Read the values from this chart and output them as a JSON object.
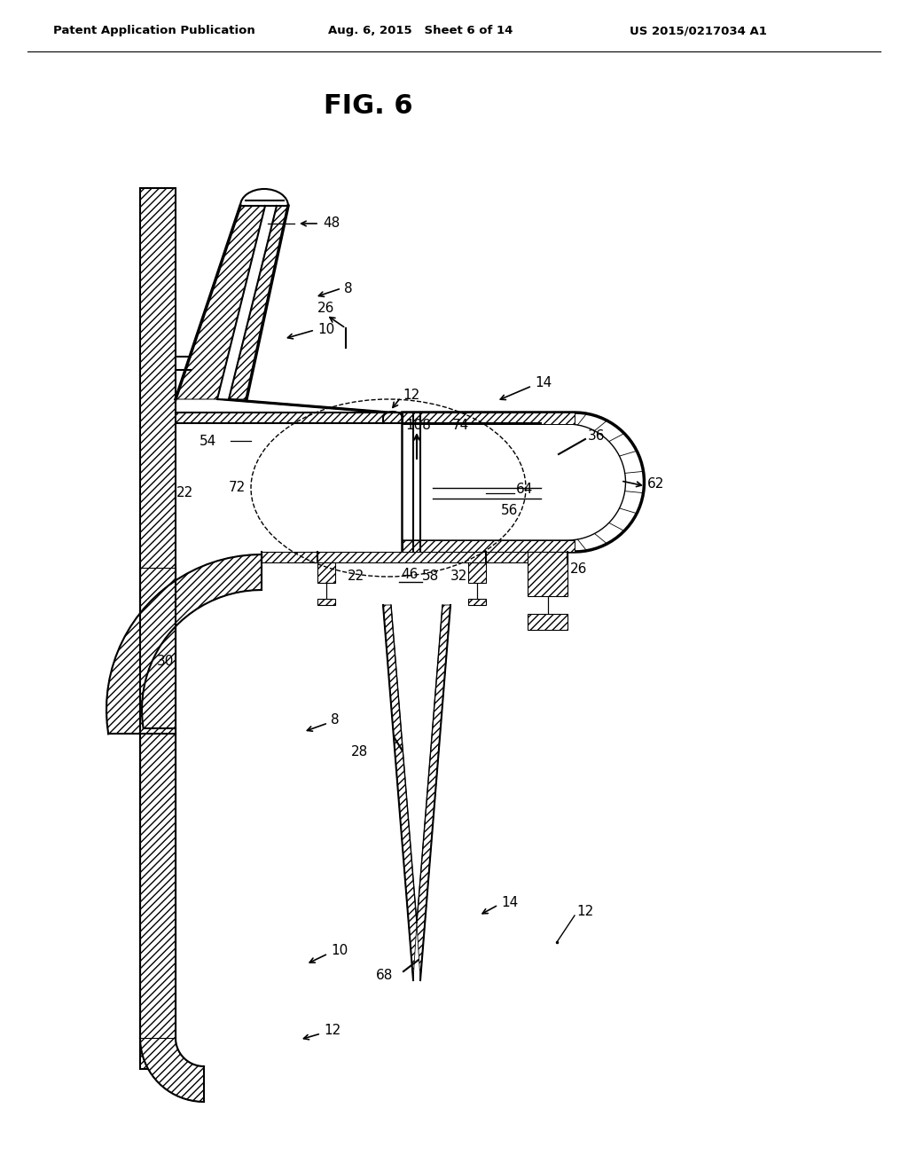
{
  "title": "FIG. 6",
  "header_left": "Patent Application Publication",
  "header_center": "Aug. 6, 2015   Sheet 6 of 14",
  "header_right": "US 2015/0217034 A1",
  "bg_color": "#ffffff",
  "line_color": "#000000",
  "lw_main": 1.5,
  "lw_thick": 2.5,
  "lw_thin": 1.0,
  "label_fontsize": 11,
  "title_fontsize": 22,
  "header_fontsize": 9.5
}
